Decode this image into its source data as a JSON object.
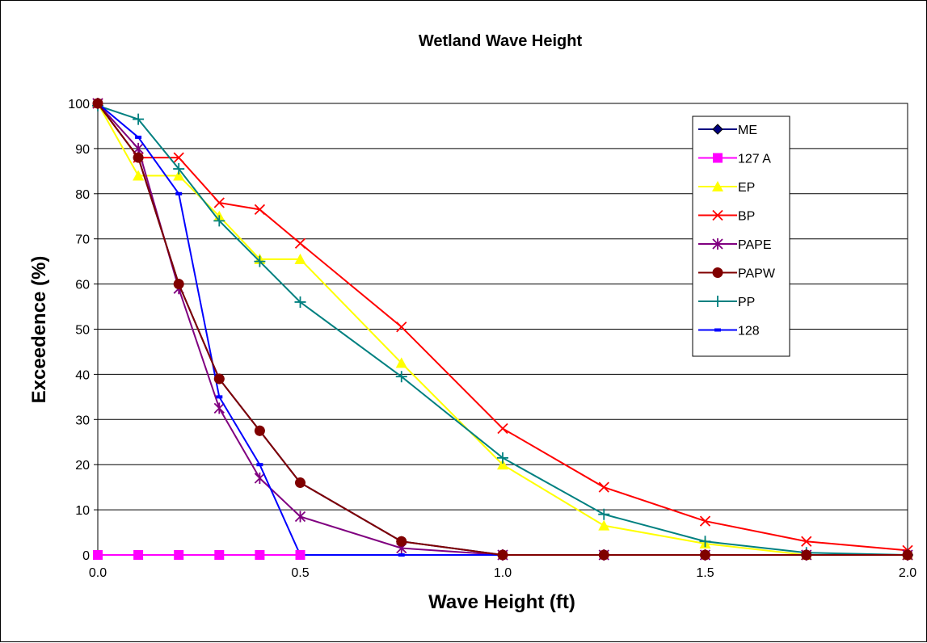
{
  "chart_data": {
    "type": "line",
    "title": "Wetland Wave Height",
    "xlabel": "Wave Height (ft)",
    "ylabel": "Exceedence (%)",
    "xlim": [
      0,
      2
    ],
    "ylim": [
      0,
      100
    ],
    "x_ticks": [
      "0.0",
      "0.5",
      "1.0",
      "1.5",
      "2.0"
    ],
    "y_ticks": [
      "0",
      "10",
      "20",
      "30",
      "40",
      "50",
      "60",
      "70",
      "80",
      "90",
      "100"
    ],
    "grid": "horizontal",
    "legend_position": "top-right",
    "series": [
      {
        "name": "ME",
        "color": "#000080",
        "marker": "diamond",
        "points": [
          [
            0,
            100
          ],
          [
            0.1,
            88
          ],
          [
            0.2,
            60
          ],
          [
            0.3,
            39
          ],
          [
            0.4,
            27.5
          ],
          [
            0.5,
            16
          ],
          [
            0.75,
            3
          ],
          [
            1.0,
            0
          ],
          [
            1.25,
            0
          ],
          [
            1.5,
            0
          ],
          [
            1.75,
            0
          ],
          [
            2.0,
            0
          ]
        ]
      },
      {
        "name": "127 A",
        "color": "#FF00FF",
        "marker": "square",
        "points": [
          [
            0,
            0
          ],
          [
            0.1,
            0
          ],
          [
            0.2,
            0
          ],
          [
            0.3,
            0
          ],
          [
            0.4,
            0
          ],
          [
            0.5,
            0
          ]
        ]
      },
      {
        "name": "EP",
        "color": "#FFFF00",
        "marker": "triangle",
        "points": [
          [
            0,
            100
          ],
          [
            0.1,
            84
          ],
          [
            0.2,
            84
          ],
          [
            0.3,
            75
          ],
          [
            0.4,
            65.5
          ],
          [
            0.5,
            65.5
          ],
          [
            0.75,
            42.5
          ],
          [
            1.0,
            20
          ],
          [
            1.25,
            6.5
          ],
          [
            1.5,
            2.5
          ],
          [
            1.75,
            0
          ],
          [
            2.0,
            0
          ]
        ]
      },
      {
        "name": "BP",
        "color": "#FF0000",
        "marker": "x",
        "points": [
          [
            0,
            100
          ],
          [
            0.1,
            88
          ],
          [
            0.2,
            88
          ],
          [
            0.3,
            78
          ],
          [
            0.4,
            76.5
          ],
          [
            0.5,
            69
          ],
          [
            0.75,
            50.5
          ],
          [
            1.0,
            28
          ],
          [
            1.25,
            15
          ],
          [
            1.5,
            7.5
          ],
          [
            1.75,
            3
          ],
          [
            2.0,
            1
          ]
        ]
      },
      {
        "name": "PAPE",
        "color": "#800080",
        "marker": "asterisk",
        "points": [
          [
            0,
            100
          ],
          [
            0.1,
            90
          ],
          [
            0.2,
            59
          ],
          [
            0.3,
            32.5
          ],
          [
            0.4,
            17
          ],
          [
            0.5,
            8.5
          ],
          [
            0.75,
            1.5
          ],
          [
            1.0,
            0
          ],
          [
            1.25,
            0
          ],
          [
            1.5,
            0
          ],
          [
            1.75,
            0
          ],
          [
            2.0,
            0
          ]
        ]
      },
      {
        "name": "PAPW",
        "color": "#800000",
        "marker": "circle",
        "points": [
          [
            0,
            100
          ],
          [
            0.1,
            88
          ],
          [
            0.2,
            60
          ],
          [
            0.3,
            39
          ],
          [
            0.4,
            27.5
          ],
          [
            0.5,
            16
          ],
          [
            0.75,
            3
          ],
          [
            1.0,
            0
          ],
          [
            1.25,
            0
          ],
          [
            1.5,
            0
          ],
          [
            1.75,
            0
          ],
          [
            2.0,
            0
          ]
        ]
      },
      {
        "name": "PP",
        "color": "#008080",
        "marker": "plus",
        "points": [
          [
            0,
            99.5
          ],
          [
            0.1,
            96.5
          ],
          [
            0.2,
            85.5
          ],
          [
            0.3,
            74
          ],
          [
            0.4,
            65
          ],
          [
            0.5,
            56
          ],
          [
            0.75,
            39.5
          ],
          [
            1.0,
            21.5
          ],
          [
            1.25,
            9
          ],
          [
            1.5,
            3
          ],
          [
            1.75,
            0.5
          ],
          [
            2.0,
            0
          ]
        ]
      },
      {
        "name": "128",
        "color": "#0000FF",
        "marker": "dash",
        "points": [
          [
            0,
            100
          ],
          [
            0.1,
            92.5
          ],
          [
            0.2,
            80
          ],
          [
            0.3,
            35
          ],
          [
            0.4,
            20
          ],
          [
            0.5,
            0
          ],
          [
            0.75,
            0
          ],
          [
            1.0,
            0
          ],
          [
            1.25,
            0
          ],
          [
            1.5,
            0
          ],
          [
            1.75,
            0
          ],
          [
            2.0,
            0
          ]
        ]
      }
    ]
  }
}
